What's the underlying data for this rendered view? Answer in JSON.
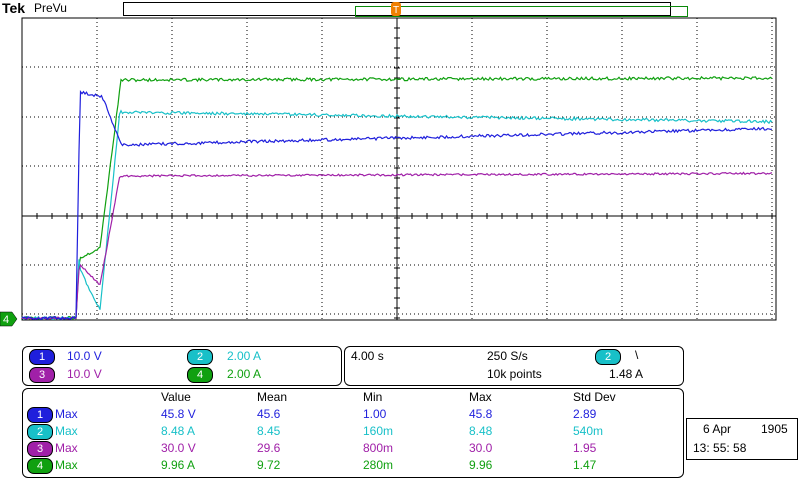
{
  "header": {
    "brand": "Tek",
    "mode": "PreVu"
  },
  "colors": {
    "ch1": "#1f1fdc",
    "ch2": "#18c0c8",
    "ch3": "#a020a8",
    "ch4": "#10a010",
    "trigger": "#f08000"
  },
  "ground_marker": "4",
  "channels": [
    {
      "num": "1",
      "scale": "10.0 V"
    },
    {
      "num": "2",
      "scale": "2.00 A"
    },
    {
      "num": "3",
      "scale": "10.0 V"
    },
    {
      "num": "4",
      "scale": "2.00 A"
    }
  ],
  "timebase": {
    "scale": "4.00 s",
    "rate": "250 S/s",
    "points": "10k points"
  },
  "trigger": {
    "source": "2",
    "slope": "\\",
    "level": "1.48 A"
  },
  "measurements": {
    "headers": [
      "Value",
      "Mean",
      "Min",
      "Max",
      "Std Dev"
    ],
    "rows": [
      {
        "ch": "1",
        "type": "Max",
        "value": "45.8 V",
        "mean": "45.6",
        "min": "1.00",
        "max": "45.8",
        "std": "2.89"
      },
      {
        "ch": "2",
        "type": "Max",
        "value": "8.48 A",
        "mean": "8.45",
        "min": "160m",
        "max": "8.48",
        "std": "540m"
      },
      {
        "ch": "3",
        "type": "Max",
        "value": "30.0 V",
        "mean": "29.6",
        "min": "800m",
        "max": "30.0",
        "std": "1.95"
      },
      {
        "ch": "4",
        "type": "Max",
        "value": "9.96 A",
        "mean": "9.72",
        "min": "280m",
        "max": "9.96",
        "std": "1.47"
      }
    ]
  },
  "datetime": {
    "date": "6 Apr",
    "year": "1905",
    "time": "13: 55: 58"
  }
}
